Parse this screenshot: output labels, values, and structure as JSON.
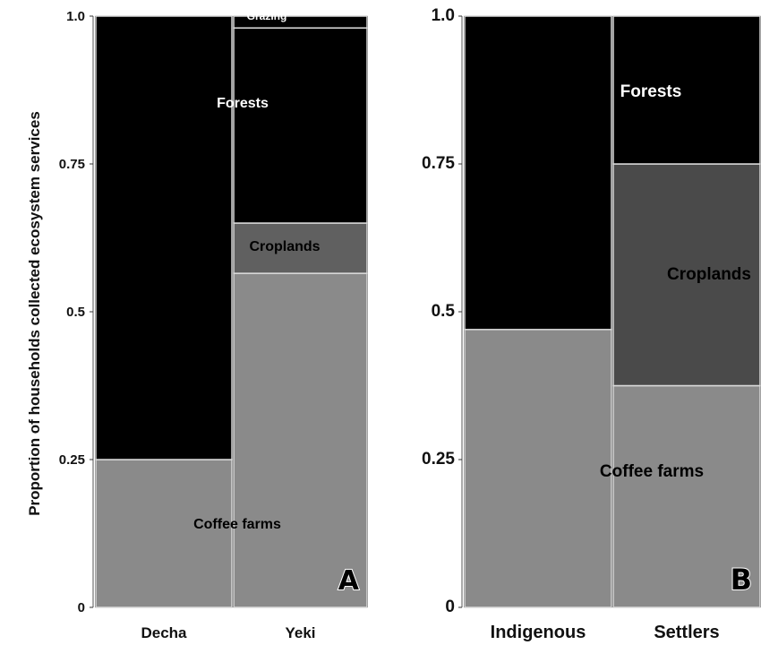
{
  "ylabel": "Proportion of households collected ecosystem services",
  "chart_data": [
    {
      "type": "bar",
      "panel": "A",
      "stacked": true,
      "categories": [
        "Decha",
        "Yeki"
      ],
      "category_widths": [
        0.505,
        0.495
      ],
      "ylim": [
        0,
        1
      ],
      "yticks": [
        "0",
        "0.25",
        "0.5",
        "0.75",
        "1.0"
      ],
      "series": [
        {
          "name": "Coffee farms",
          "values": [
            0.25,
            0.565
          ],
          "color": "#8a8a8a"
        },
        {
          "name": "Croplands",
          "values": [
            0.0,
            0.085
          ],
          "color": "#606060"
        },
        {
          "name": "Forests",
          "values": [
            0.75,
            0.33
          ],
          "color": "#000000"
        },
        {
          "name": "Grazing",
          "values": [
            0.0,
            0.02
          ],
          "color": "#000000"
        }
      ],
      "labels": [
        {
          "series": "Coffee farms",
          "text": "Coffee farms"
        },
        {
          "series": "Croplands",
          "text": "Croplands"
        },
        {
          "series": "Forests",
          "text": "Forests"
        },
        {
          "series": "Grazing",
          "text": "Grazing"
        }
      ]
    },
    {
      "type": "bar",
      "panel": "B",
      "stacked": true,
      "categories": [
        "Indigenous",
        "Settlers"
      ],
      "category_widths": [
        0.5,
        0.5
      ],
      "ylim": [
        0,
        1
      ],
      "yticks": [
        "0",
        "0.25",
        "0.5",
        "0.75",
        "1.0"
      ],
      "series": [
        {
          "name": "Coffee farms",
          "values": [
            0.47,
            0.375
          ],
          "color": "#8a8a8a"
        },
        {
          "name": "Croplands",
          "values": [
            0.0,
            0.375
          ],
          "color": "#4a4a4a"
        },
        {
          "name": "Forests",
          "values": [
            0.53,
            0.25
          ],
          "color": "#000000"
        }
      ],
      "labels": [
        {
          "series": "Coffee farms",
          "text": "Coffee farms"
        },
        {
          "series": "Croplands",
          "text": "Croplands"
        },
        {
          "series": "Forests",
          "text": "Forests"
        }
      ]
    }
  ]
}
